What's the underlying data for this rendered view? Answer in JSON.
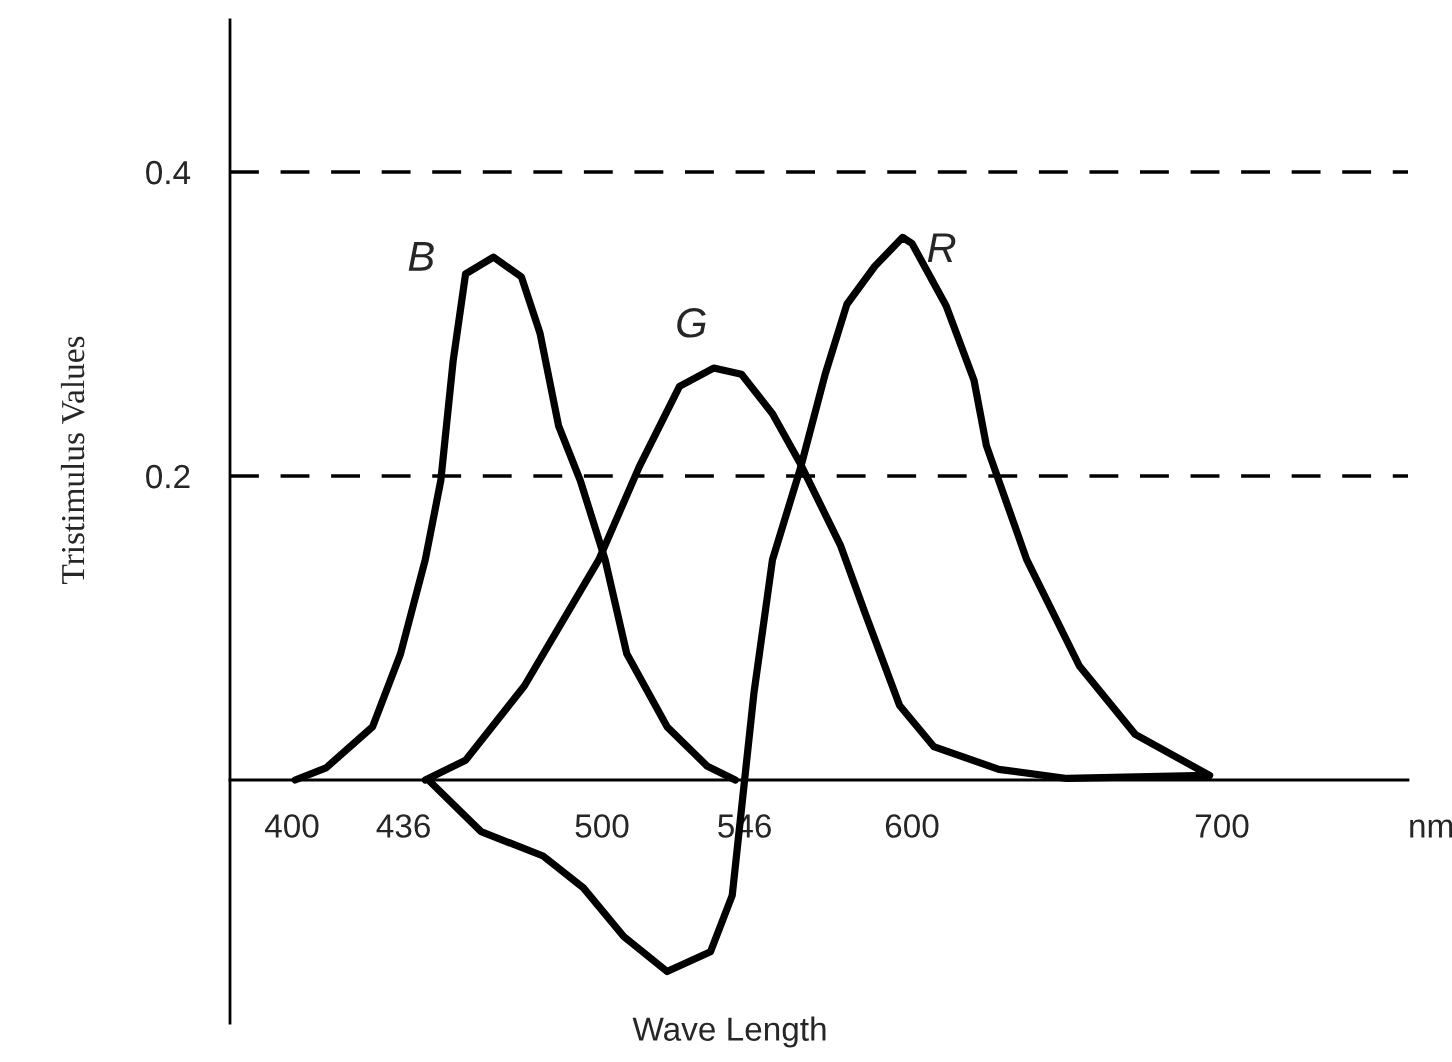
{
  "chart_data": {
    "type": "line",
    "xlabel": "Wave Length",
    "ylabel": "Tristimulus Values",
    "annotations": [
      "nm"
    ],
    "xlim": [
      380,
      760
    ],
    "xticks": [
      400,
      436,
      500,
      546,
      600,
      700
    ],
    "ylim": [
      -0.16,
      0.5
    ],
    "yticks": [
      0.2,
      0.4
    ],
    "grid": "y",
    "line_style": "solid",
    "marker": "none",
    "legend": false,
    "series": [
      {
        "name": "B",
        "color": "#000000",
        "x": [
          401,
          411,
          426,
          435,
          443,
          448,
          452,
          456,
          465,
          474,
          480,
          486,
          493,
          501,
          508,
          521,
          534,
          543
        ],
        "values": [
          0,
          0.008,
          0.035,
          0.083,
          0.145,
          0.197,
          0.276,
          0.333,
          0.344,
          0.331,
          0.294,
          0.233,
          0.197,
          0.145,
          0.083,
          0.035,
          0.009,
          0
        ]
      },
      {
        "name": "G",
        "color": "#000000",
        "x": [
          443,
          456,
          475,
          499,
          512,
          525,
          536,
          545,
          555,
          564,
          577,
          585,
          596,
          607,
          628,
          650,
          695
        ],
        "values": [
          0,
          0.013,
          0.062,
          0.145,
          0.206,
          0.259,
          0.271,
          0.267,
          0.241,
          0.208,
          0.154,
          0.109,
          0.049,
          0.022,
          0.007,
          0.001,
          0.003
        ]
      },
      {
        "name": "R",
        "color": "#000000",
        "x": [
          444,
          461,
          481,
          494,
          507,
          521,
          535,
          542,
          546,
          549,
          555,
          564,
          572,
          579,
          588,
          597,
          600,
          611,
          620,
          624,
          637,
          654,
          672,
          696
        ],
        "values": [
          0,
          -0.034,
          -0.05,
          -0.071,
          -0.103,
          -0.126,
          -0.113,
          -0.076,
          0,
          0.057,
          0.145,
          0.205,
          0.267,
          0.313,
          0.338,
          0.357,
          0.353,
          0.312,
          0.263,
          0.22,
          0.145,
          0.075,
          0.03,
          0.003
        ]
      }
    ]
  }
}
